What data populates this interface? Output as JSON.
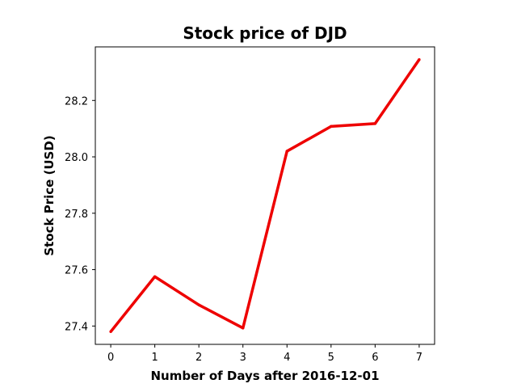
{
  "chart_data": {
    "type": "line",
    "title": "Stock price of DJD",
    "xlabel": "Number of Days after 2016-12-01",
    "ylabel": "Stock Price (USD)",
    "x": [
      0,
      1,
      2,
      3,
      4,
      5,
      6,
      7
    ],
    "series": [
      {
        "values": [
          27.38,
          27.575,
          27.475,
          27.393,
          28.02,
          28.108,
          28.118,
          28.345
        ],
        "color": "#ee0000"
      }
    ],
    "xlim": [
      -0.35,
      7.35
    ],
    "ylim": [
      27.335,
      28.39
    ],
    "xticks": [
      0,
      1,
      2,
      3,
      4,
      5,
      6,
      7
    ],
    "yticks": [
      27.4,
      27.6,
      27.8,
      28.0,
      28.2
    ],
    "yticklabels": [
      "27.4",
      "27.6",
      "27.8",
      "28.0",
      "28.2"
    ],
    "grid": false,
    "legend": "none"
  }
}
